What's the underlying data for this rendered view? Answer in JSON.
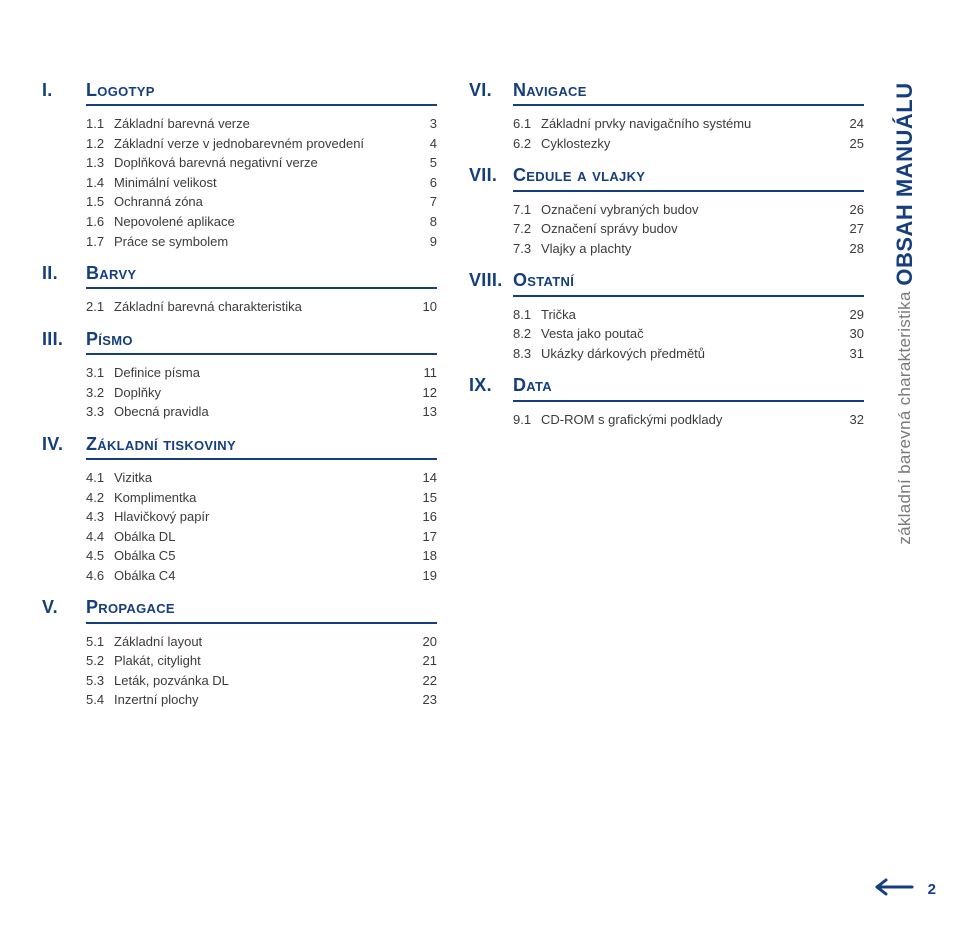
{
  "colors": {
    "brand": "#153e7e",
    "text": "#3b3b3b",
    "subtle": "#7a7a7a",
    "background": "#ffffff"
  },
  "page_number": "2",
  "sidebar": {
    "title": "OBSAH MANUÁLU",
    "subtitle": "základní barevná charakteristika"
  },
  "toc_left": [
    {
      "roman": "I.",
      "title": "Logotyp",
      "items": [
        {
          "num": "1.1",
          "label": "Základní barevná verze",
          "page": "3"
        },
        {
          "num": "1.2",
          "label": "Základní verze v jednobarevném provedení",
          "page": "4"
        },
        {
          "num": "1.3",
          "label": "Doplňková barevná negativní verze",
          "page": "5"
        },
        {
          "num": "1.4",
          "label": "Minimální velikost",
          "page": "6"
        },
        {
          "num": "1.5",
          "label": "Ochranná zóna",
          "page": "7"
        },
        {
          "num": "1.6",
          "label": "Nepovolené aplikace",
          "page": "8"
        },
        {
          "num": "1.7",
          "label": "Práce se symbolem",
          "page": "9"
        }
      ]
    },
    {
      "roman": "II.",
      "title": "Barvy",
      "items": [
        {
          "num": "2.1",
          "label": "Základní barevná charakteristika",
          "page": "10"
        }
      ]
    },
    {
      "roman": "III.",
      "title": "Písmo",
      "items": [
        {
          "num": "3.1",
          "label": "Definice písma",
          "page": "11"
        },
        {
          "num": "3.2",
          "label": "Doplňky",
          "page": "12"
        },
        {
          "num": "3.3",
          "label": "Obecná pravidla",
          "page": "13"
        }
      ]
    },
    {
      "roman": "IV.",
      "title": "Základní tiskoviny",
      "items": [
        {
          "num": "4.1",
          "label": "Vizitka",
          "page": "14"
        },
        {
          "num": "4.2",
          "label": "Komplimentka",
          "page": "15"
        },
        {
          "num": "4.3",
          "label": "Hlavičkový papír",
          "page": "16"
        },
        {
          "num": "4.4",
          "label": "Obálka DL",
          "page": "17"
        },
        {
          "num": "4.5",
          "label": "Obálka C5",
          "page": "18"
        },
        {
          "num": "4.6",
          "label": "Obálka C4",
          "page": "19"
        }
      ]
    },
    {
      "roman": "V.",
      "title": "Propagace",
      "items": [
        {
          "num": "5.1",
          "label": "Základní layout",
          "page": "20"
        },
        {
          "num": "5.2",
          "label": "Plakát, citylight",
          "page": "21"
        },
        {
          "num": "5.3",
          "label": "Leták, pozvánka DL",
          "page": "22"
        },
        {
          "num": "5.4",
          "label": "Inzertní plochy",
          "page": "23"
        }
      ]
    }
  ],
  "toc_right": [
    {
      "roman": "VI.",
      "title": "Navigace",
      "items": [
        {
          "num": "6.1",
          "label": "Základní prvky navigačního systému",
          "page": "24"
        },
        {
          "num": "6.2",
          "label": "Cyklostezky",
          "page": "25"
        }
      ]
    },
    {
      "roman": "VII.",
      "title": "Cedule a vlajky",
      "items": [
        {
          "num": "7.1",
          "label": "Označení vybraných budov",
          "page": "26"
        },
        {
          "num": "7.2",
          "label": "Označení správy budov",
          "page": "27"
        },
        {
          "num": "7.3",
          "label": "Vlajky a plachty",
          "page": "28"
        }
      ]
    },
    {
      "roman": "VIII.",
      "title": "Ostatní",
      "items": [
        {
          "num": "8.1",
          "label": "Trička",
          "page": "29"
        },
        {
          "num": "8.2",
          "label": "Vesta jako poutač",
          "page": "30"
        },
        {
          "num": "8.3",
          "label": "Ukázky dárkových předmětů",
          "page": "31"
        }
      ]
    },
    {
      "roman": "IX.",
      "title": "Data",
      "items": [
        {
          "num": "9.1",
          "label": "CD-ROM s grafickými podklady",
          "page": "32"
        }
      ]
    }
  ]
}
